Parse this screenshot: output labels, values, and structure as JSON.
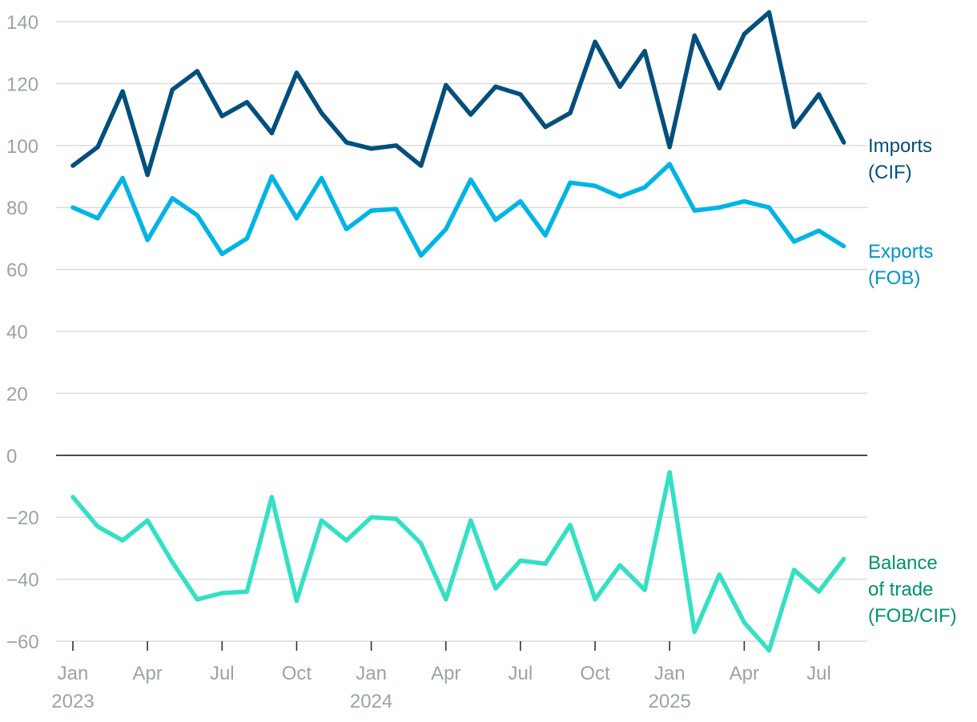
{
  "chart_data": {
    "type": "line",
    "title": "",
    "xlabel": "",
    "ylabel": "",
    "ylim": [
      -60,
      140
    ],
    "yticks": [
      -60,
      -40,
      -20,
      0,
      20,
      40,
      60,
      80,
      100,
      120,
      140
    ],
    "ytick_labels": [
      "−60",
      "−40",
      "−20",
      "0",
      "20",
      "40",
      "60",
      "80",
      "100",
      "120",
      "140"
    ],
    "x_ticks": [
      {
        "index": 0,
        "month": "Jan",
        "year": "2023"
      },
      {
        "index": 3,
        "month": "Apr",
        "year": ""
      },
      {
        "index": 6,
        "month": "Jul",
        "year": ""
      },
      {
        "index": 9,
        "month": "Oct",
        "year": ""
      },
      {
        "index": 12,
        "month": "Jan",
        "year": "2024"
      },
      {
        "index": 15,
        "month": "Apr",
        "year": ""
      },
      {
        "index": 18,
        "month": "Jul",
        "year": ""
      },
      {
        "index": 21,
        "month": "Oct",
        "year": ""
      },
      {
        "index": 24,
        "month": "Jan",
        "year": "2025"
      },
      {
        "index": 27,
        "month": "Apr",
        "year": ""
      },
      {
        "index": 30,
        "month": "Jul",
        "year": ""
      }
    ],
    "categories": [
      "2023-01",
      "2023-02",
      "2023-03",
      "2023-04",
      "2023-05",
      "2023-06",
      "2023-07",
      "2023-08",
      "2023-09",
      "2023-10",
      "2023-11",
      "2023-12",
      "2024-01",
      "2024-02",
      "2024-03",
      "2024-04",
      "2024-05",
      "2024-06",
      "2024-07",
      "2024-08",
      "2024-09",
      "2024-10",
      "2024-11",
      "2024-12",
      "2025-01",
      "2025-02",
      "2025-03",
      "2025-04",
      "2025-05",
      "2025-06",
      "2025-07",
      "2025-08"
    ],
    "series": [
      {
        "name": "Imports (CIF)",
        "label_lines": [
          "Imports",
          "(CIF)"
        ],
        "color": "#004f7c",
        "values": [
          93.5,
          99.5,
          117.5,
          90.5,
          118,
          124,
          109.5,
          114,
          104,
          123.5,
          110.5,
          101,
          99,
          100,
          93.5,
          119.5,
          110,
          119,
          116.5,
          106,
          110.5,
          133.5,
          119,
          130.5,
          99.5,
          135.5,
          118.5,
          136,
          143,
          106,
          116.5,
          101
        ]
      },
      {
        "name": "Exports (FOB)",
        "label_lines": [
          "Exports",
          "(FOB)"
        ],
        "color": "#00b4e6",
        "label_color": "#0094c9",
        "values": [
          80,
          76.5,
          89.5,
          69.5,
          83,
          77.5,
          65,
          70,
          90,
          76.5,
          89.5,
          73,
          79,
          79.5,
          64.5,
          73,
          89,
          76,
          82,
          71,
          88,
          87,
          83.5,
          86.5,
          94,
          79,
          80,
          82,
          80,
          69,
          72.5,
          67.5
        ]
      },
      {
        "name": "Balance of trade (FOB/CIF)",
        "label_lines": [
          "Balance",
          "of trade",
          "(FOB/CIF)"
        ],
        "color": "#34e0c4",
        "label_color": "#00936e",
        "values": [
          -13.5,
          -23,
          -27.5,
          -21,
          -34.5,
          -46.5,
          -44.5,
          -44,
          -13.5,
          -47,
          -21,
          -27.5,
          -20,
          -20.5,
          -28.5,
          -46.5,
          -21,
          -43,
          -34,
          -35,
          -22.5,
          -46.5,
          -35.5,
          -43.5,
          -5.5,
          -57,
          -38.5,
          -54,
          -63,
          -37,
          -44,
          -33.5
        ]
      }
    ]
  }
}
